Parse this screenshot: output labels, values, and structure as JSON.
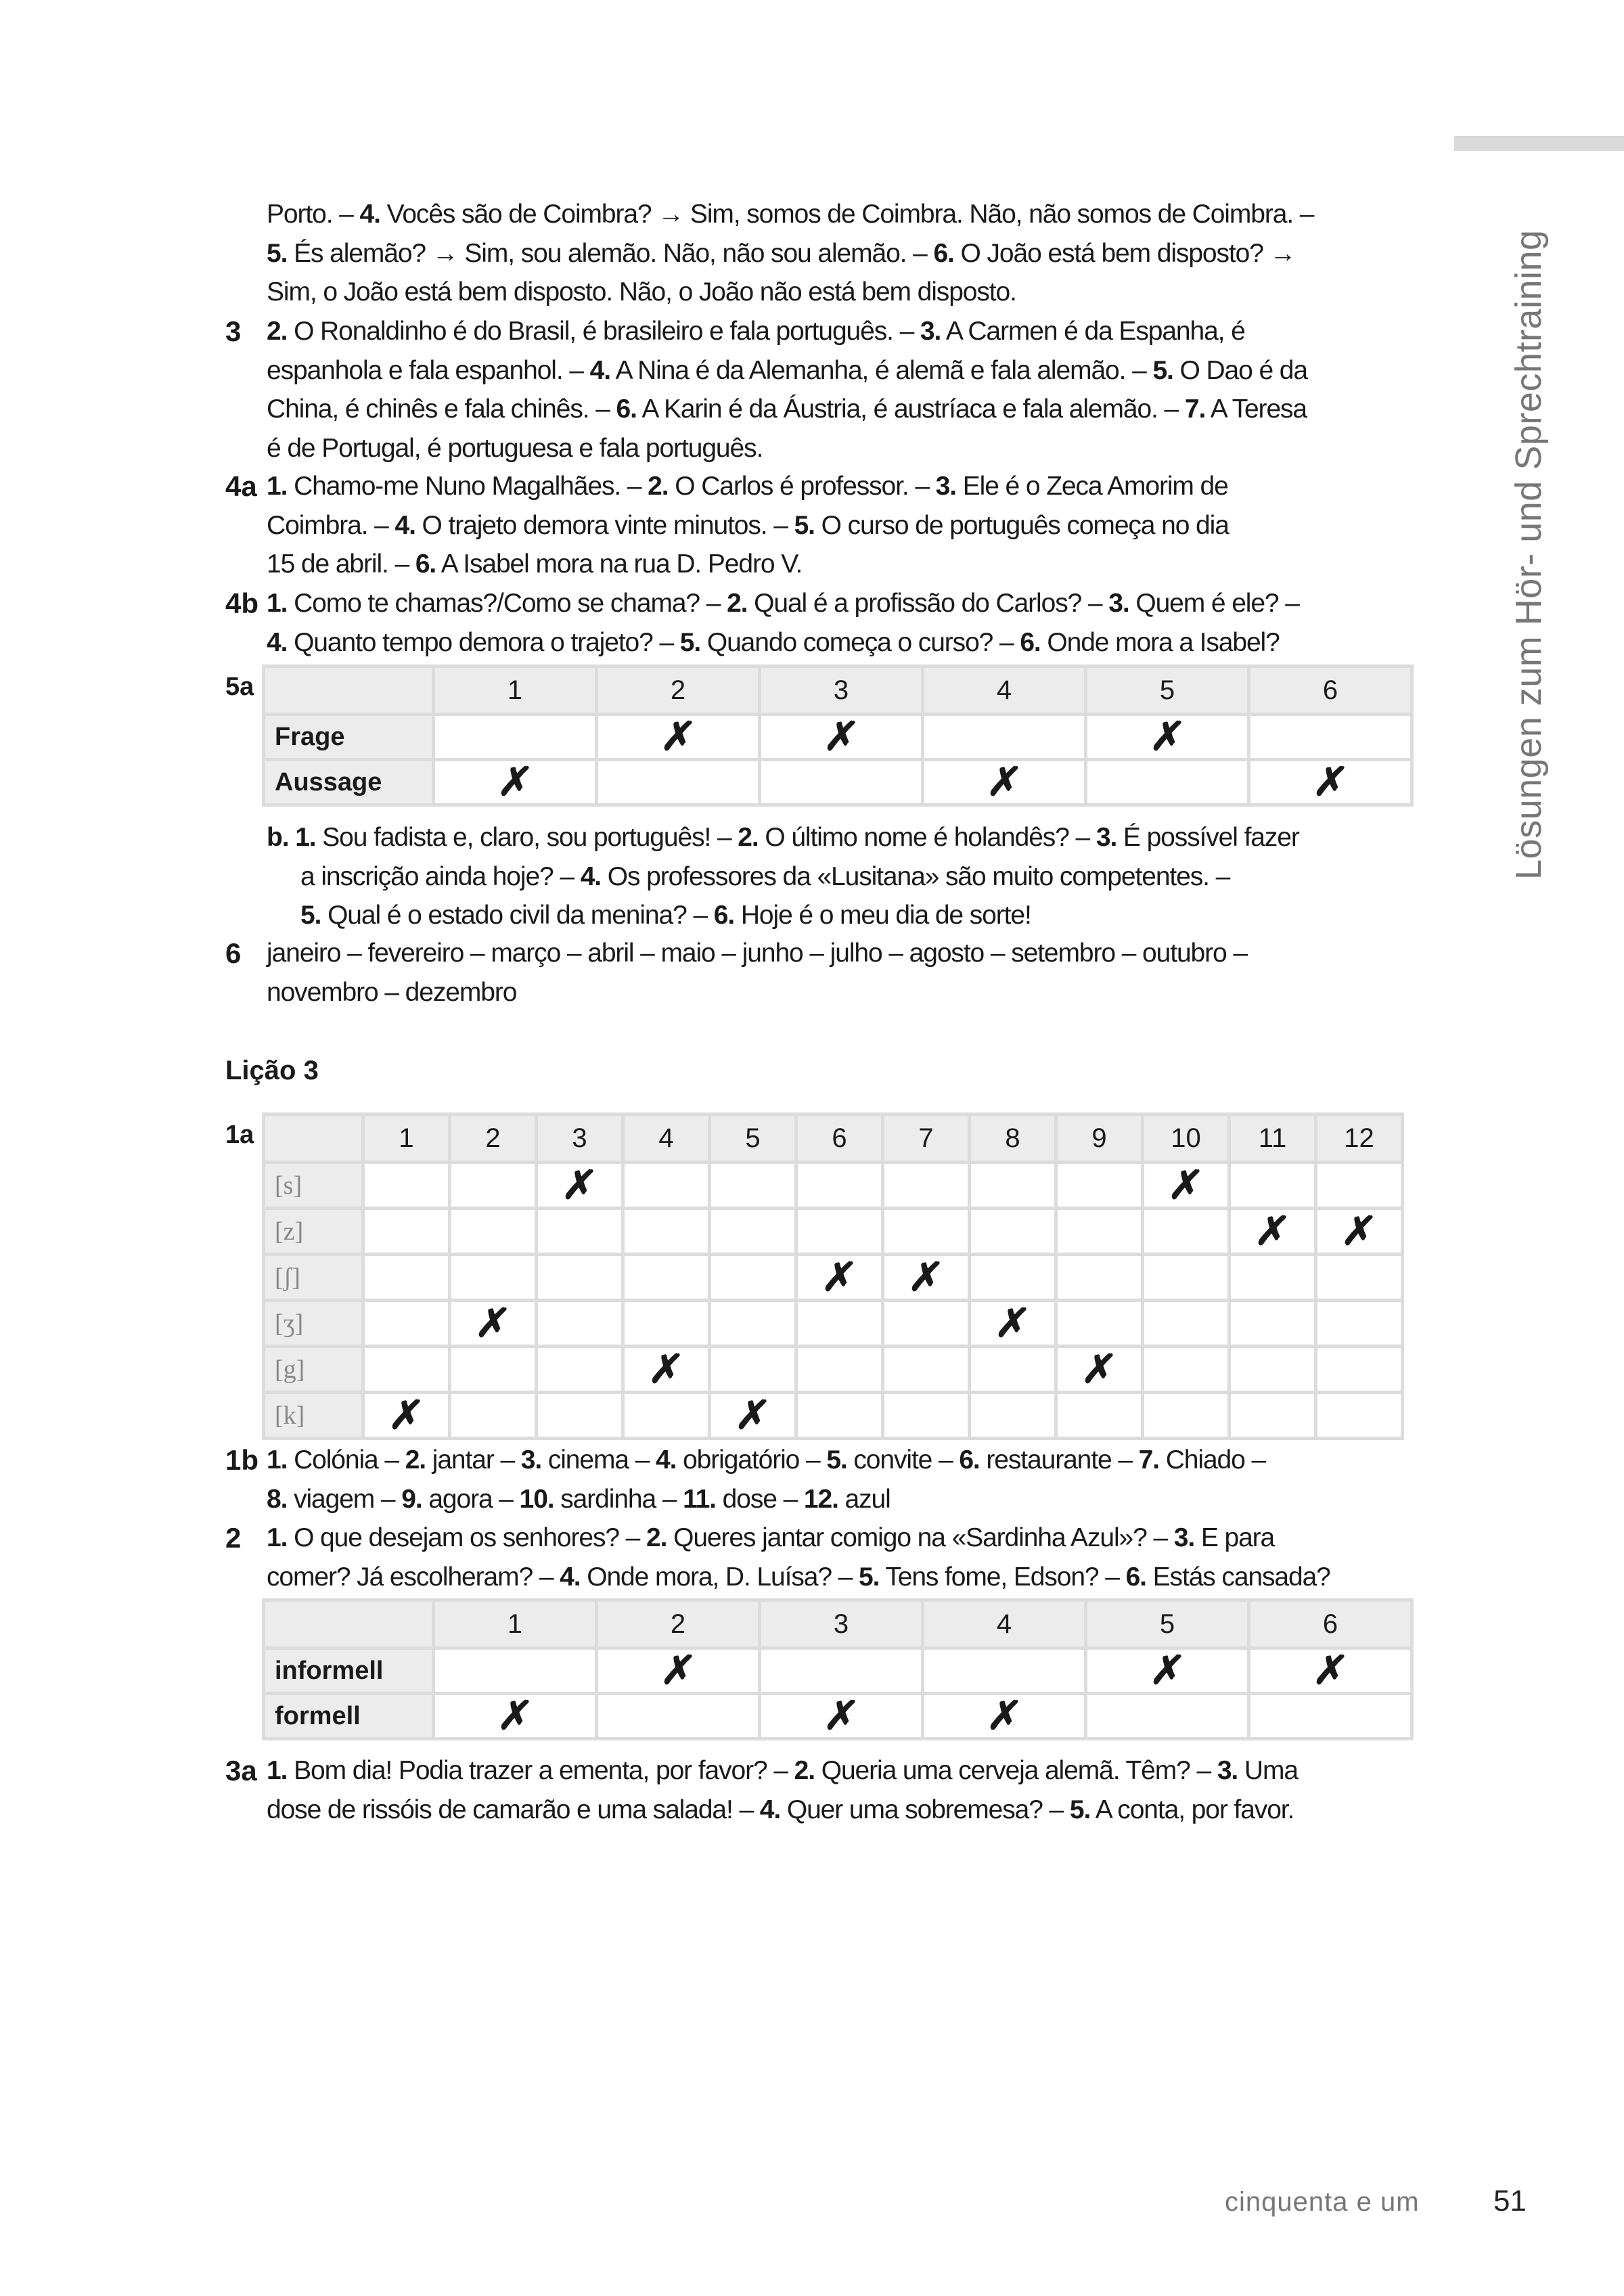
{
  "sidebar": {
    "title": "Lösungen zum Hör- und Sprechtraining"
  },
  "blocks": [
    {
      "label": "",
      "lines": [
        [
          "Porto. – ",
          "4.",
          " Vocês são de Coimbra? → Sim, somos de Coimbra. Não, não somos de Coimbra. –"
        ],
        [
          "",
          "5.",
          " És alemão? → Sim, sou alemão. Não, não sou alemão. – ",
          "6.",
          " O João está bem disposto? →"
        ],
        [
          "Sim, o João está bem disposto. Não, o João não está bem disposto."
        ]
      ]
    },
    {
      "label": "3",
      "lines": [
        [
          "",
          "2.",
          " O Ronaldinho é do Brasil, é brasileiro e fala português. – ",
          "3.",
          " A Carmen é da Espanha, é"
        ],
        [
          "espanhola e fala espanhol. – ",
          "4.",
          " A Nina é da Alemanha, é alemã e fala alemão. – ",
          "5.",
          " O Dao é da"
        ],
        [
          "China, é chinês e fala chinês. – ",
          "6.",
          " A Karin é da Áustria, é austríaca e fala alemão. – ",
          "7.",
          " A Teresa"
        ],
        [
          "é de Portugal, é portuguesa e fala português."
        ]
      ]
    },
    {
      "label": "4a",
      "lines": [
        [
          "",
          "1.",
          " Chamo-me Nuno Magalhães. – ",
          "2.",
          " O Carlos é professor. – ",
          "3.",
          " Ele é o Zeca Amorim de"
        ],
        [
          "Coimbra. – ",
          "4.",
          " O trajeto demora vinte minutos. – ",
          "5.",
          " O curso de português começa no dia"
        ],
        [
          "15 de abril. – ",
          "6.",
          " A Isabel mora na rua D. Pedro V."
        ]
      ]
    },
    {
      "label": "4b",
      "lines": [
        [
          "",
          "1.",
          " Como te chamas?/Como se chama? – ",
          "2.",
          " Qual é a profissão do Carlos? – ",
          "3.",
          " Quem é ele? –"
        ],
        [
          "",
          "4.",
          " Quanto tempo demora o trajeto? – ",
          "5.",
          " Quando começa o curso? – ",
          "6.",
          " Onde mora a Isabel?"
        ]
      ]
    },
    {
      "label": "",
      "indent": true,
      "lines": [
        [
          "",
          "b. 1.",
          " Sou fadista e, claro, sou português! – ",
          "2.",
          " O último nome é holandês? – ",
          "3.",
          " É possível fazer"
        ],
        [
          "a inscrição ainda hoje? – ",
          "4.",
          " Os professores da «Lusitana» são muito competentes. –"
        ],
        [
          "",
          "5.",
          " Qual é o estado civil da menina? – ",
          "6.",
          " Hoje é o meu dia de sorte!"
        ]
      ]
    },
    {
      "label": "6",
      "lines": [
        [
          "janeiro – fevereiro – março – abril – maio – junho – julho – agosto – setembro – outubro –"
        ],
        [
          "novembro – dezembro"
        ]
      ]
    },
    {
      "label": "1b",
      "lines": [
        [
          "",
          "1.",
          " Colónia – ",
          "2.",
          " jantar – ",
          "3.",
          " cinema – ",
          "4.",
          " obrigatório – ",
          "5.",
          " convite – ",
          "6.",
          " restaurante – ",
          "7.",
          " Chiado –"
        ],
        [
          "",
          "8.",
          " viagem – ",
          "9.",
          " agora – ",
          "10.",
          " sardinha – ",
          "11.",
          " dose – ",
          "12.",
          " azul"
        ]
      ]
    },
    {
      "label": "2",
      "lines": [
        [
          "",
          "1.",
          " O que desejam os senhores? – ",
          "2.",
          " Queres jantar comigo na «Sardinha Azul»? – ",
          "3.",
          " E para"
        ],
        [
          "comer? Já escolheram? – ",
          "4.",
          " Onde mora, D. Luísa? – ",
          "5.",
          " Tens fome, Edson? – ",
          "6.",
          " Estás cansada?"
        ]
      ]
    },
    {
      "label": "3a",
      "lines": [
        [
          "",
          "1.",
          " Bom dia! Podia trazer a ementa, por favor? – ",
          "2.",
          " Queria uma cerveja alemã. Têm? – ",
          "3.",
          " Uma"
        ],
        [
          "dose de rissóis de camarão e uma salada! – ",
          "4.",
          " Quer uma sobremesa? – ",
          "5.",
          " A conta, por favor."
        ]
      ]
    }
  ],
  "lesson_heading": "Lição 3",
  "mark_symbol": "✗",
  "tables": [
    {
      "label": "5a",
      "columns": [
        "1",
        "2",
        "3",
        "4",
        "5",
        "6"
      ],
      "rows": [
        {
          "name": "Frage",
          "marked": [
            "2",
            "3",
            "5"
          ]
        },
        {
          "name": "Aussage",
          "marked": [
            "1",
            "4",
            "6"
          ]
        }
      ]
    },
    {
      "label": "1a",
      "phonetic": true,
      "columns": [
        "1",
        "2",
        "3",
        "4",
        "5",
        "6",
        "7",
        "8",
        "9",
        "10",
        "11",
        "12"
      ],
      "rows": [
        {
          "name": "[s]",
          "marked": [
            "3",
            "10"
          ]
        },
        {
          "name": "[z]",
          "marked": [
            "11",
            "12"
          ]
        },
        {
          "name": "[ʃ]",
          "marked": [
            "6",
            "7"
          ]
        },
        {
          "name": "[ʒ]",
          "marked": [
            "2",
            "8"
          ]
        },
        {
          "name": "[g]",
          "marked": [
            "4",
            "9"
          ]
        },
        {
          "name": "[k]",
          "marked": [
            "1",
            "5"
          ]
        }
      ]
    },
    {
      "label": "",
      "columns": [
        "1",
        "2",
        "3",
        "4",
        "5",
        "6"
      ],
      "rows": [
        {
          "name": "informell",
          "marked": [
            "2",
            "5",
            "6"
          ]
        },
        {
          "name": "formell",
          "marked": [
            "1",
            "3",
            "4"
          ]
        }
      ]
    }
  ],
  "footer": {
    "page_words": "cinquenta e um",
    "page_number": "51"
  }
}
